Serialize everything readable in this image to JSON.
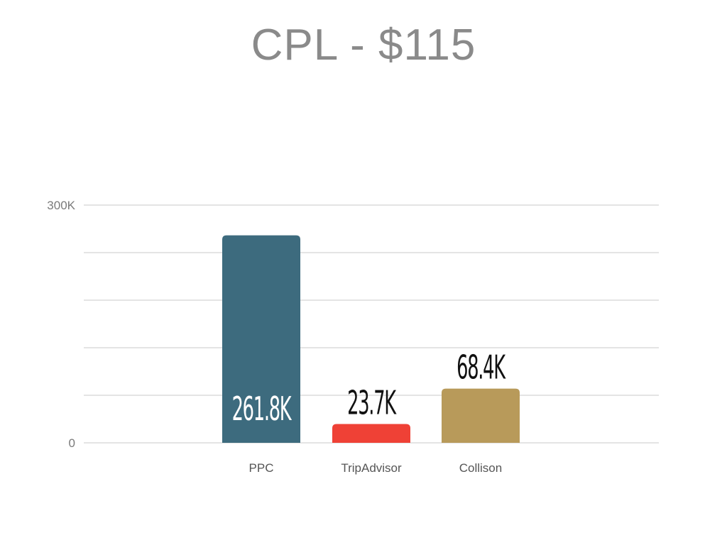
{
  "chart_data": {
    "type": "bar",
    "title": "CPL - $115",
    "categories": [
      "PPC",
      "TripAdvisor",
      "Collison"
    ],
    "values": [
      261800,
      23700,
      68400
    ],
    "data_labels": [
      "261.8K",
      "23.7K",
      "68.4K"
    ],
    "colors": [
      "#3d6b7e",
      "#ef4136",
      "#b89a5a"
    ],
    "label_colors": [
      "#ffffff",
      "#111111",
      "#111111"
    ],
    "label_inside": [
      true,
      false,
      false
    ],
    "ylim": [
      0,
      300000
    ],
    "yticks": [
      {
        "value": 0,
        "label": "0"
      },
      {
        "value": 300000,
        "label": "300K"
      }
    ],
    "gridlines": [
      0,
      60000,
      120000,
      180000,
      240000,
      300000
    ],
    "grid": true,
    "xlabel": "",
    "ylabel": ""
  }
}
